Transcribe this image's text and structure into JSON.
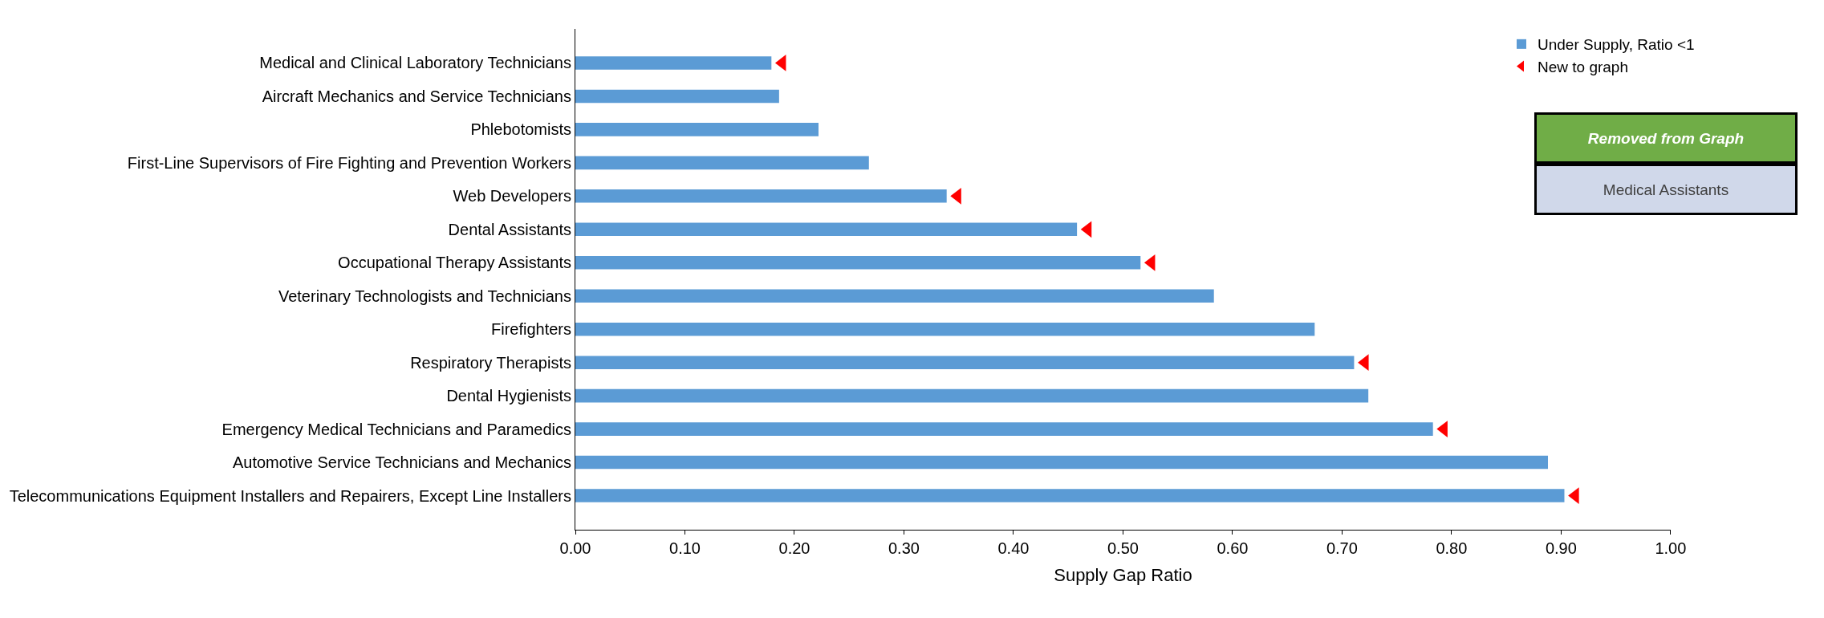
{
  "chart_data": {
    "type": "bar",
    "orientation": "horizontal",
    "xlabel": "Supply Gap Ratio",
    "categories": [
      "Medical and Clinical Laboratory Technicians",
      "Aircraft Mechanics and Service Technicians",
      "Phlebotomists",
      "First-Line Supervisors of Fire Fighting and Prevention Workers",
      "Web Developers",
      "Dental Assistants",
      "Occupational Therapy Assistants",
      "Veterinary Technologists and Technicians",
      "Firefighters",
      "Respiratory Therapists",
      "Dental Hygienists",
      "Emergency Medical Technicians and Paramedics",
      "Automotive Service Technicians and Mechanics",
      "Telecommunications Equipment Installers and Repairers, Except Line Installers"
    ],
    "series": [
      {
        "name": "Under Supply, Ratio <1",
        "color": "#5b9bd5",
        "values": [
          0.179,
          0.186,
          0.222,
          0.268,
          0.339,
          0.458,
          0.516,
          0.583,
          0.675,
          0.711,
          0.724,
          0.783,
          0.888,
          0.903
        ]
      },
      {
        "name": "New to graph",
        "type": "scatter",
        "marker": "triangle",
        "color": "#ff0000",
        "values": [
          0.189,
          null,
          null,
          null,
          0.349,
          0.468,
          0.526,
          null,
          null,
          0.721,
          null,
          0.793,
          null,
          0.913
        ]
      }
    ],
    "xlim": [
      0,
      1
    ],
    "xticks": [
      {
        "value": 0,
        "label": "0.00"
      },
      {
        "value": 0.1,
        "label": "0.10"
      },
      {
        "value": 0.2,
        "label": "0.20"
      },
      {
        "value": 0.3,
        "label": "0.30"
      },
      {
        "value": 0.4,
        "label": "0.40"
      },
      {
        "value": 0.5,
        "label": "0.50"
      },
      {
        "value": 0.6,
        "label": "0.60"
      },
      {
        "value": 0.7,
        "label": "0.70"
      },
      {
        "value": 0.8,
        "label": "0.80"
      },
      {
        "value": 0.9,
        "label": "0.90"
      },
      {
        "value": 1,
        "label": "1.00"
      }
    ],
    "legend": "top right",
    "annotations": [
      "Removed from Graph",
      "Medical Assistants"
    ]
  }
}
